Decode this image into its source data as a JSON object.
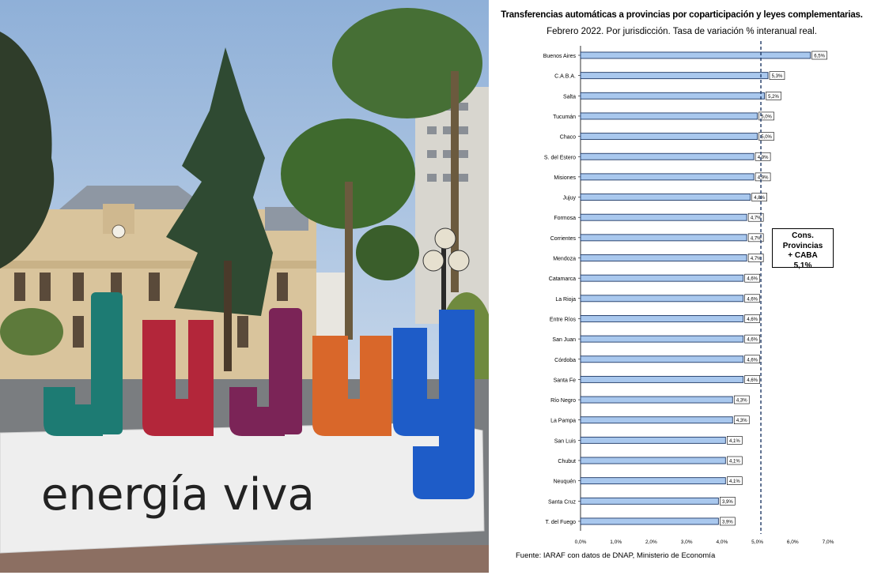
{
  "photo": {
    "sign_letters": [
      "J",
      "u",
      "j",
      "u",
      "y"
    ],
    "sign_slogan": "energía viva",
    "letter_colors": [
      "#1d7b73",
      "#b3263a",
      "#7b2457",
      "#d9672a",
      "#1e5cc8"
    ]
  },
  "chart_data": {
    "type": "bar",
    "orientation": "horizontal",
    "title": "Transferencias automáticas a provincias por coparticipación y leyes complementarias.",
    "subtitle": "Febrero 2022. Por jurisdicción. Tasa de variación % interanual real.",
    "categories": [
      "Buenos Aires",
      "C.A.B.A.",
      "Salta",
      "Tucumán",
      "Chaco",
      "S. del Estero",
      "Misiones",
      "Jujuy",
      "Formosa",
      "Corrientes",
      "Mendoza",
      "Catamarca",
      "La Rioja",
      "Entre Ríos",
      "San Juan",
      "Córdoba",
      "Santa Fe",
      "Río Negro",
      "La Pampa",
      "San Luis",
      "Chubut",
      "Neuquén",
      "Santa Cruz",
      "T. del Fuego"
    ],
    "values": [
      6.5,
      5.3,
      5.2,
      5.0,
      5.0,
      4.9,
      4.9,
      4.8,
      4.7,
      4.7,
      4.7,
      4.6,
      4.6,
      4.6,
      4.6,
      4.6,
      4.6,
      4.3,
      4.3,
      4.1,
      4.1,
      4.1,
      3.9,
      3.9
    ],
    "value_labels": [
      "6,5%",
      "5,3%",
      "5,2%",
      "5,0%",
      "5,0%",
      "4,9%",
      "4,9%",
      "4,8%",
      "4,7%",
      "4,7%",
      "4,7%",
      "4,6%",
      "4,6%",
      "4,6%",
      "4,6%",
      "4,6%",
      "4,6%",
      "4,3%",
      "4,3%",
      "4,1%",
      "4,1%",
      "4,1%",
      "3,9%",
      "3,9%"
    ],
    "xlim": [
      0,
      7
    ],
    "x_ticks": [
      "0,0%",
      "1,0%",
      "2,0%",
      "3,0%",
      "4,0%",
      "5,0%",
      "6,0%",
      "7,0%"
    ],
    "reference_line": {
      "value": 5.1,
      "label_lines": [
        "Cons. Provincias",
        "+ CABA",
        "5,1%"
      ]
    },
    "bar_color": "#a9c8ee",
    "bar_edge_color": "#1f3864",
    "grid": false,
    "source": "Fuente: IARAF con datos de DNAP, Ministerio de Economía"
  }
}
